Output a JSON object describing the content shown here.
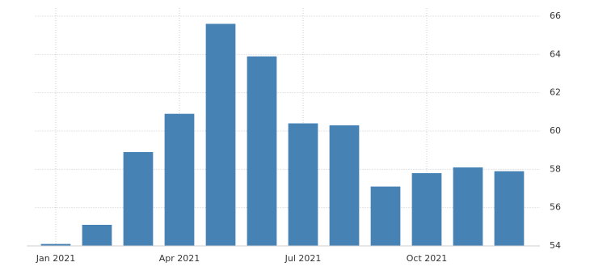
{
  "chart_data": {
    "type": "bar",
    "categories": [
      "Jan 2021",
      null,
      null,
      "Apr 2021",
      null,
      null,
      "Jul 2021",
      null,
      null,
      "Oct 2021",
      null,
      null
    ],
    "values": [
      54.1,
      55.1,
      58.9,
      60.9,
      65.6,
      63.9,
      60.4,
      60.3,
      57.1,
      57.8,
      58.1,
      57.9
    ],
    "color": "#4682b4",
    "ylim": [
      54,
      66
    ],
    "yticks": [
      54,
      56,
      58,
      60,
      62,
      64,
      66
    ],
    "grid": true,
    "y_axis_side": "right"
  }
}
